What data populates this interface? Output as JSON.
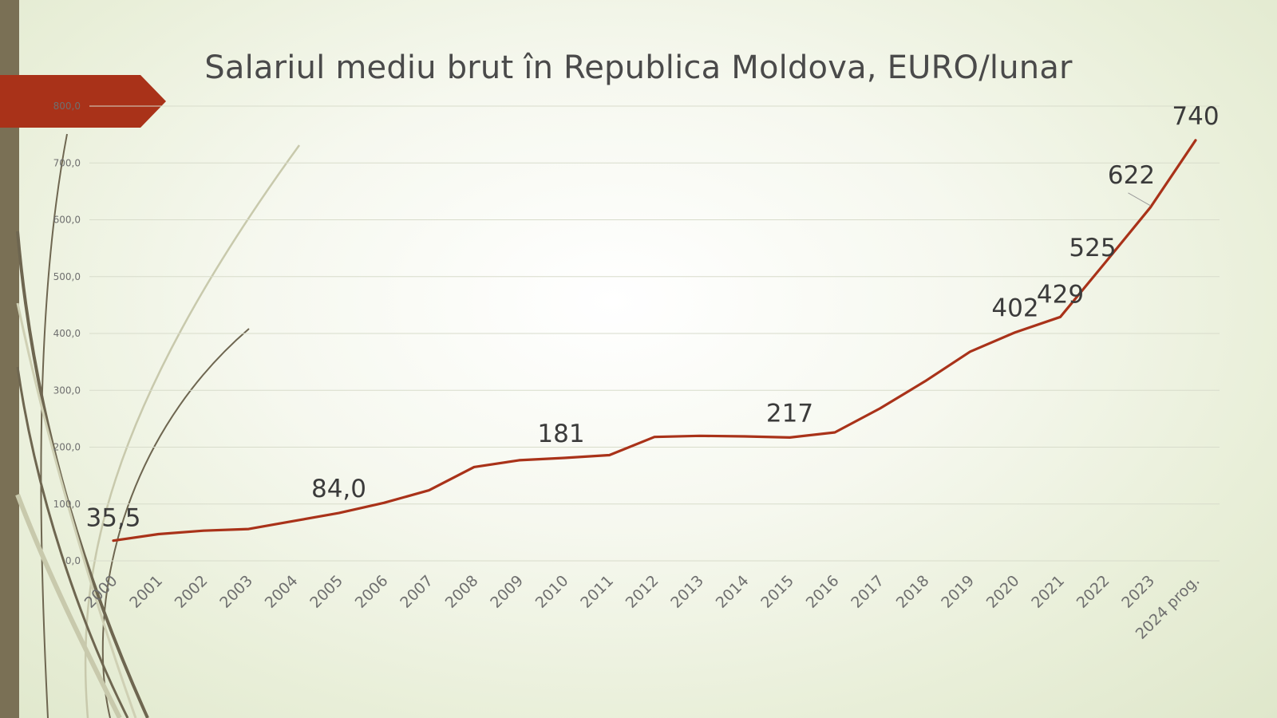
{
  "slide": {
    "title": "Salariul mediu brut în Republica Moldova, EURO/lunar"
  },
  "colors": {
    "line": "#a93219",
    "arrow": "#a93219",
    "gridline": "#d8dccb",
    "axis_text": "#6f6f6f",
    "label_text": "#3b3b3b",
    "decor_dark": "#6e6650",
    "decor_light": "#c8c9ac",
    "left_bar": "#7a7055"
  },
  "chart_data": {
    "type": "line",
    "title": "Salariul mediu brut în Republica Moldova, EURO/lunar",
    "xlabel": "",
    "ylabel": "",
    "ylim": [
      0,
      800
    ],
    "yticks": [
      0,
      100,
      200,
      300,
      400,
      500,
      600,
      700,
      800
    ],
    "ytick_labels": [
      "0,0",
      "100,0",
      "200,0",
      "300,0",
      "400,0",
      "500,0",
      "600,0",
      "700,0",
      "800,0"
    ],
    "grid": true,
    "legend": "none",
    "categories": [
      "2000",
      "2001",
      "2002",
      "2003",
      "2004",
      "2005",
      "2006",
      "2007",
      "2008",
      "2009",
      "2010",
      "2011",
      "2012",
      "2013",
      "2014",
      "2015",
      "2016",
      "2017",
      "2018",
      "2019",
      "2020",
      "2021",
      "2022",
      "2023",
      "2024 prog."
    ],
    "series": [
      {
        "values": [
          35.5,
          47,
          53,
          56,
          70,
          84,
          102,
          124,
          165,
          177,
          181,
          186,
          218,
          220,
          219,
          217,
          226,
          268,
          316,
          368,
          402,
          429,
          525,
          622,
          740
        ]
      }
    ],
    "data_labels": [
      {
        "index": 0,
        "text": "35,5"
      },
      {
        "index": 5,
        "text": "84,0"
      },
      {
        "index": 10,
        "text": "181"
      },
      {
        "index": 15,
        "text": "217"
      },
      {
        "index": 20,
        "text": "402"
      },
      {
        "index": 21,
        "text": "429"
      },
      {
        "index": 22,
        "text": "525"
      },
      {
        "index": 23,
        "text": "622"
      },
      {
        "index": 24,
        "text": "740"
      }
    ]
  }
}
